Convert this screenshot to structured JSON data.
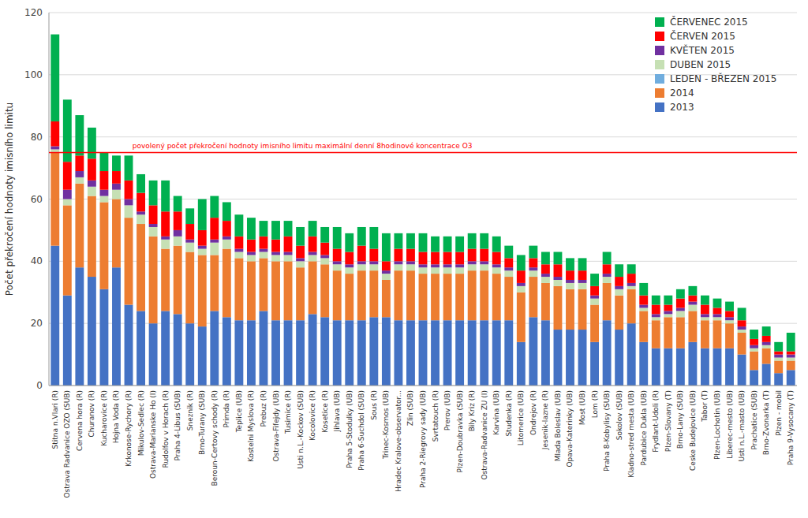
{
  "chart_data": {
    "type": "bar",
    "stacked": true,
    "y_label": "Počet překročení hodnoty imisního limitu",
    "categories": [
      "Stitna n.Vlari (R)",
      "Ostrava Radvanice OZO (SUB)",
      "Cervena hora (R)",
      "Churanov (R)",
      "Kucharovice (R)",
      "Hojna Voda (R)",
      "Krkonose-Rychory (R)",
      "Mikulov-Sedlec (R)",
      "Ostrava-Marianske Ho (I)",
      "Rudolfov v Horach (R)",
      "Praha 4-Libus (SUB)",
      "Sneznik (R)",
      "Brno-Turany (SUB)",
      "Beroun-Certovy schody (R)",
      "Primda (R)",
      "Teplice (UB)",
      "Kostelni Myslova (R)",
      "Prebuz (R)",
      "Ostrava-Fifejdy (UB)",
      "Tusimice (R)",
      "Usti n.L.-Kockov (SUB)",
      "Kocolovice (R)",
      "Kosetice (R)",
      "Jihlava (UB)",
      "Praha 5-Stodulky (UB)",
      "Praha 6-Suchdol (SUB)",
      "Sous (R)",
      "Trinec-Kosmos (UB)",
      "Hradec Kralove-observator...",
      "Zlin (SUB)",
      "Praha 2-Riegrovy sady (UB)",
      "Svrtatouch (R)",
      "Prerov (UB)",
      "Plzen-Doubravka (SUB)",
      "Bily Kriz (R)",
      "Ostrava-Radvanice ZU (I)",
      "Karvina (UB)",
      "Studenka (R)",
      "Litomerice (UB)",
      "Ondrejov (R)",
      "Jesenik-lazne (R)",
      "Mlada Boleslav (UB)",
      "Opava-Katerinky (UB)",
      "Most (UB)",
      "Lom (R)",
      "Praha 8-Kobylisy (SUB)",
      "Sokolov (SUB)",
      "Kladno-stred mesta (UB)",
      "Pardubice Dukla (UB)",
      "Frydlant-Udoli (R)",
      "Plzen-Slovany (T)",
      "Brno-Lany (SUB)",
      "Ceske Budejovice (UB)",
      "Tabor (T)",
      "Plzen-Lochotin (UB)",
      "Liberec-mesto (UB)",
      "Usti n.L.-masto (UB)",
      "Prachatice (SUB)",
      "Brno-Zvonarka (T)",
      "Plzen - mobil",
      "Praha 9-Vysocany (T)"
    ],
    "series": [
      {
        "name": "2013",
        "color": "#4472C4",
        "values": [
          45,
          29,
          38,
          35,
          31,
          38,
          26,
          24,
          20,
          24,
          23,
          20,
          19,
          24,
          22,
          21,
          21,
          24,
          21,
          21,
          21,
          23,
          22,
          21,
          21,
          21,
          22,
          22,
          21,
          21,
          21,
          21,
          21,
          21,
          21,
          21,
          21,
          21,
          14,
          22,
          21,
          18,
          18,
          18,
          14,
          21,
          18,
          20,
          14,
          12,
          12,
          12,
          14,
          12,
          12,
          12,
          10,
          5,
          7,
          4,
          5
        ]
      },
      {
        "name": "2014",
        "color": "#ED7D31",
        "values": [
          30,
          29,
          27,
          26,
          28,
          22,
          28,
          28,
          28,
          20,
          22,
          23,
          23,
          18,
          22,
          20,
          19,
          17,
          19,
          19,
          17,
          17,
          17,
          16,
          15,
          16,
          15,
          12,
          16,
          16,
          15,
          15,
          15,
          15,
          16,
          16,
          15,
          14,
          16,
          13,
          12,
          14,
          13,
          13,
          12,
          12,
          11,
          11,
          10,
          9,
          10,
          10,
          10,
          9,
          9,
          8,
          7,
          6,
          5,
          4,
          3
        ]
      },
      {
        "name": "LEDEN - BŘEZEN 2015",
        "color": "#70ADDE",
        "values": [
          0,
          0,
          0,
          0,
          0,
          0,
          0,
          0,
          0,
          0,
          0,
          0,
          0,
          0,
          0,
          0,
          0,
          0,
          0,
          0,
          0,
          0,
          0,
          0,
          0,
          0,
          0,
          0,
          0,
          0,
          0,
          0,
          0,
          0,
          0,
          0,
          0,
          0,
          0,
          0,
          0,
          0,
          0,
          0,
          0,
          0,
          0,
          0,
          0,
          0,
          0,
          0,
          0,
          0,
          0,
          0,
          0,
          0,
          0,
          0,
          0
        ]
      },
      {
        "name": "DUBEN 2015",
        "color": "#C6E0B4",
        "values": [
          1,
          2,
          2,
          3,
          2,
          3,
          4,
          3,
          3,
          3,
          3,
          3,
          2,
          4,
          3,
          2,
          2,
          2,
          2,
          2,
          2,
          2,
          2,
          2,
          2,
          2,
          2,
          2,
          2,
          2,
          2,
          2,
          2,
          2,
          2,
          2,
          2,
          2,
          2,
          2,
          2,
          2,
          2,
          2,
          2,
          2,
          2,
          1,
          1,
          1,
          1,
          2,
          2,
          1,
          1,
          1,
          1,
          1,
          1,
          1,
          1
        ]
      },
      {
        "name": "KVĚTEN 2015",
        "color": "#7030A0",
        "values": [
          1,
          3,
          2,
          2,
          2,
          2,
          2,
          1,
          1,
          1,
          2,
          1,
          1,
          1,
          1,
          1,
          1,
          1,
          1,
          1,
          1,
          1,
          1,
          1,
          1,
          1,
          1,
          1,
          1,
          1,
          1,
          1,
          1,
          1,
          1,
          1,
          1,
          1,
          1,
          1,
          1,
          1,
          1,
          1,
          1,
          1,
          1,
          1,
          1,
          1,
          1,
          1,
          1,
          1,
          1,
          1,
          1,
          1,
          1,
          1,
          1
        ]
      },
      {
        "name": "ČERVEN 2015",
        "color": "#FF0000",
        "values": [
          8,
          9,
          5,
          7,
          6,
          4,
          6,
          6,
          6,
          8,
          6,
          5,
          5,
          7,
          5,
          4,
          4,
          4,
          4,
          5,
          4,
          5,
          4,
          4,
          4,
          5,
          4,
          3,
          4,
          4,
          4,
          4,
          4,
          4,
          4,
          4,
          4,
          3,
          4,
          3,
          3,
          4,
          3,
          3,
          3,
          3,
          3,
          3,
          3,
          3,
          2,
          3,
          2,
          3,
          2,
          2,
          2,
          2,
          2,
          1,
          1
        ]
      },
      {
        "name": "ČERVENEC 2015",
        "color": "#00B050",
        "values": [
          28,
          20,
          13,
          10,
          6,
          5,
          8,
          6,
          8,
          10,
          5,
          5,
          10,
          7,
          6,
          7,
          7,
          5,
          6,
          5,
          6,
          5,
          5,
          7,
          6,
          6,
          7,
          9,
          5,
          5,
          6,
          5,
          5,
          5,
          5,
          5,
          5,
          4,
          5,
          4,
          4,
          4,
          4,
          4,
          4,
          4,
          4,
          3,
          4,
          3,
          3,
          3,
          3,
          3,
          3,
          3,
          4,
          3,
          3,
          3,
          6
        ]
      }
    ],
    "ylim": [
      0,
      120
    ],
    "yticks": [
      0,
      20,
      40,
      60,
      80,
      100,
      120
    ],
    "grid": true,
    "legend": "upper right",
    "reference_line": {
      "value": 75,
      "label": "povolený počet překročení hodnoty imisního limitu maximální denní 8hodinové koncentrace O3",
      "color": "#FF0000"
    }
  }
}
